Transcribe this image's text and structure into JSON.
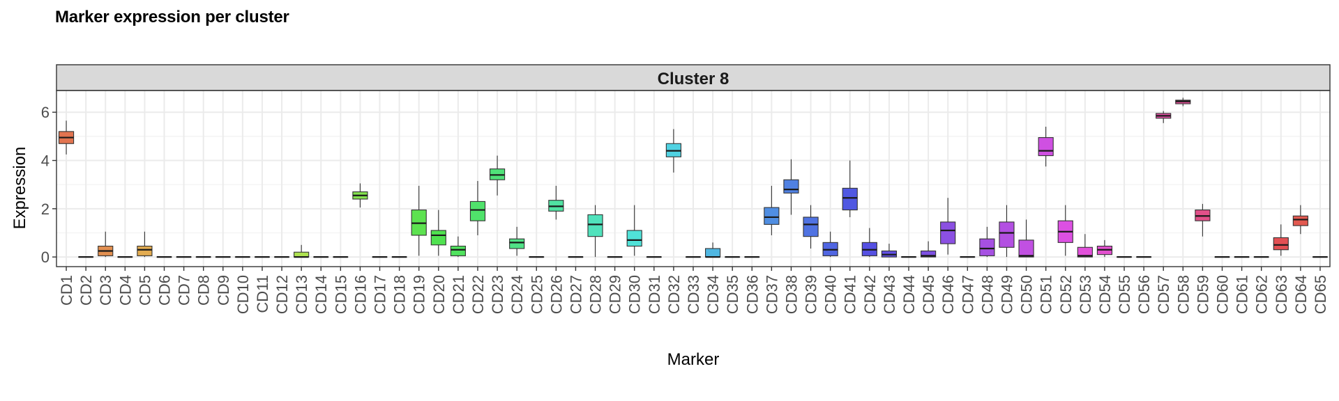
{
  "chart_data": {
    "type": "boxplot",
    "title": "Marker expression per cluster",
    "facet": "Cluster 8",
    "xlabel": "Marker",
    "ylabel": "Expression",
    "ylim": [
      -0.4,
      6.9
    ],
    "yticks": [
      0,
      2,
      4,
      6
    ],
    "grid": true,
    "legend": "none",
    "categories": [
      "CD1",
      "CD2",
      "CD3",
      "CD4",
      "CD5",
      "CD6",
      "CD7",
      "CD8",
      "CD9",
      "CD10",
      "CD11",
      "CD12",
      "CD13",
      "CD14",
      "CD15",
      "CD16",
      "CD17",
      "CD18",
      "CD19",
      "CD20",
      "CD21",
      "CD22",
      "CD23",
      "CD24",
      "CD25",
      "CD26",
      "CD27",
      "CD28",
      "CD29",
      "CD30",
      "CD31",
      "CD32",
      "CD33",
      "CD34",
      "CD35",
      "CD36",
      "CD37",
      "CD38",
      "CD39",
      "CD40",
      "CD41",
      "CD42",
      "CD43",
      "CD44",
      "CD45",
      "CD46",
      "CD47",
      "CD48",
      "CD49",
      "CD50",
      "CD51",
      "CD52",
      "CD53",
      "CD54",
      "CD55",
      "CD56",
      "CD57",
      "CD58",
      "CD59",
      "CD60",
      "CD61",
      "CD62",
      "CD63",
      "CD64",
      "CD65"
    ],
    "boxes": [
      {
        "min": 4.25,
        "q1": 4.7,
        "median": 4.95,
        "q3": 5.2,
        "max": 5.65
      },
      {
        "min": 0,
        "q1": 0,
        "median": 0,
        "q3": 0,
        "max": 0
      },
      {
        "min": 0,
        "q1": 0.05,
        "median": 0.25,
        "q3": 0.45,
        "max": 1.05
      },
      {
        "min": 0,
        "q1": 0,
        "median": 0,
        "q3": 0,
        "max": 0
      },
      {
        "min": 0,
        "q1": 0.05,
        "median": 0.3,
        "q3": 0.45,
        "max": 1.05
      },
      {
        "min": 0,
        "q1": 0,
        "median": 0,
        "q3": 0,
        "max": 0
      },
      {
        "min": 0,
        "q1": 0,
        "median": 0,
        "q3": 0,
        "max": 0
      },
      {
        "min": 0,
        "q1": 0,
        "median": 0,
        "q3": 0,
        "max": 0
      },
      {
        "min": 0,
        "q1": 0,
        "median": 0,
        "q3": 0,
        "max": 0
      },
      {
        "min": 0,
        "q1": 0,
        "median": 0,
        "q3": 0,
        "max": 0
      },
      {
        "min": 0,
        "q1": 0,
        "median": 0,
        "q3": 0,
        "max": 0
      },
      {
        "min": 0,
        "q1": 0,
        "median": 0,
        "q3": 0,
        "max": 0
      },
      {
        "min": 0,
        "q1": 0,
        "median": 0,
        "q3": 0.2,
        "max": 0.5
      },
      {
        "min": 0,
        "q1": 0,
        "median": 0,
        "q3": 0,
        "max": 0
      },
      {
        "min": 0,
        "q1": 0,
        "median": 0,
        "q3": 0,
        "max": 0
      },
      {
        "min": 2.05,
        "q1": 2.4,
        "median": 2.55,
        "q3": 2.7,
        "max": 3.05
      },
      {
        "min": 0,
        "q1": 0,
        "median": 0,
        "q3": 0,
        "max": 0
      },
      {
        "min": 0,
        "q1": 0,
        "median": 0,
        "q3": 0,
        "max": 0
      },
      {
        "min": 0.05,
        "q1": 0.9,
        "median": 1.4,
        "q3": 1.95,
        "max": 2.95
      },
      {
        "min": 0.05,
        "q1": 0.5,
        "median": 0.9,
        "q3": 1.1,
        "max": 1.95
      },
      {
        "min": 0,
        "q1": 0.05,
        "median": 0.3,
        "q3": 0.45,
        "max": 0.85
      },
      {
        "min": 0.9,
        "q1": 1.5,
        "median": 1.95,
        "q3": 2.3,
        "max": 3.15
      },
      {
        "min": 2.55,
        "q1": 3.2,
        "median": 3.4,
        "q3": 3.65,
        "max": 4.2
      },
      {
        "min": 0.05,
        "q1": 0.35,
        "median": 0.6,
        "q3": 0.75,
        "max": 1.25
      },
      {
        "min": 0,
        "q1": 0,
        "median": 0,
        "q3": 0,
        "max": 0
      },
      {
        "min": 1.55,
        "q1": 1.9,
        "median": 2.1,
        "q3": 2.35,
        "max": 2.95
      },
      {
        "min": 0,
        "q1": 0,
        "median": 0,
        "q3": 0,
        "max": 0
      },
      {
        "min": 0,
        "q1": 0.85,
        "median": 1.35,
        "q3": 1.75,
        "max": 2.15
      },
      {
        "min": 0,
        "q1": 0,
        "median": 0,
        "q3": 0,
        "max": 0
      },
      {
        "min": 0.05,
        "q1": 0.45,
        "median": 0.7,
        "q3": 1.1,
        "max": 2.15
      },
      {
        "min": 0,
        "q1": 0,
        "median": 0,
        "q3": 0,
        "max": 0
      },
      {
        "min": 3.5,
        "q1": 4.15,
        "median": 4.4,
        "q3": 4.7,
        "max": 5.3
      },
      {
        "min": 0,
        "q1": 0,
        "median": 0,
        "q3": 0,
        "max": 0
      },
      {
        "min": 0,
        "q1": 0,
        "median": 0,
        "q3": 0.35,
        "max": 0.6
      },
      {
        "min": 0,
        "q1": 0,
        "median": 0,
        "q3": 0,
        "max": 0
      },
      {
        "min": 0,
        "q1": 0,
        "median": 0,
        "q3": 0,
        "max": 0
      },
      {
        "min": 0.9,
        "q1": 1.35,
        "median": 1.65,
        "q3": 2.05,
        "max": 2.95
      },
      {
        "min": 1.75,
        "q1": 2.65,
        "median": 2.8,
        "q3": 3.2,
        "max": 4.05
      },
      {
        "min": 0.35,
        "q1": 0.85,
        "median": 1.35,
        "q3": 1.65,
        "max": 2.15
      },
      {
        "min": 0,
        "q1": 0.05,
        "median": 0.3,
        "q3": 0.6,
        "max": 1.05
      },
      {
        "min": 1.65,
        "q1": 1.95,
        "median": 2.45,
        "q3": 2.85,
        "max": 4.0
      },
      {
        "min": 0,
        "q1": 0.05,
        "median": 0.3,
        "q3": 0.6,
        "max": 1.2
      },
      {
        "min": 0,
        "q1": 0,
        "median": 0.1,
        "q3": 0.25,
        "max": 0.55
      },
      {
        "min": 0,
        "q1": 0,
        "median": 0,
        "q3": 0,
        "max": 0
      },
      {
        "min": 0,
        "q1": 0,
        "median": 0.05,
        "q3": 0.25,
        "max": 0.65
      },
      {
        "min": 0.1,
        "q1": 0.55,
        "median": 1.1,
        "q3": 1.45,
        "max": 2.45
      },
      {
        "min": 0,
        "q1": 0,
        "median": 0,
        "q3": 0,
        "max": 0
      },
      {
        "min": 0,
        "q1": 0.05,
        "median": 0.35,
        "q3": 0.75,
        "max": 1.25
      },
      {
        "min": 0,
        "q1": 0.4,
        "median": 1.0,
        "q3": 1.45,
        "max": 2.15
      },
      {
        "min": 0,
        "q1": 0,
        "median": 0.05,
        "q3": 0.7,
        "max": 1.55
      },
      {
        "min": 3.75,
        "q1": 4.2,
        "median": 4.4,
        "q3": 4.95,
        "max": 5.4
      },
      {
        "min": 0.05,
        "q1": 0.6,
        "median": 1.05,
        "q3": 1.5,
        "max": 2.15
      },
      {
        "min": 0,
        "q1": 0,
        "median": 0.05,
        "q3": 0.4,
        "max": 0.95
      },
      {
        "min": 0,
        "q1": 0.1,
        "median": 0.3,
        "q3": 0.45,
        "max": 0.7
      },
      {
        "min": 0,
        "q1": 0,
        "median": 0,
        "q3": 0,
        "max": 0
      },
      {
        "min": 0,
        "q1": 0,
        "median": 0,
        "q3": 0,
        "max": 0
      },
      {
        "min": 5.55,
        "q1": 5.75,
        "median": 5.85,
        "q3": 5.95,
        "max": 6.05
      },
      {
        "min": 6.25,
        "q1": 6.35,
        "median": 6.45,
        "q3": 6.5,
        "max": 6.6
      },
      {
        "min": 0.85,
        "q1": 1.5,
        "median": 1.7,
        "q3": 1.95,
        "max": 2.2
      },
      {
        "min": 0,
        "q1": 0,
        "median": 0,
        "q3": 0,
        "max": 0
      },
      {
        "min": 0,
        "q1": 0,
        "median": 0,
        "q3": 0,
        "max": 0
      },
      {
        "min": 0,
        "q1": 0,
        "median": 0,
        "q3": 0,
        "max": 0
      },
      {
        "min": 0.05,
        "q1": 0.3,
        "median": 0.5,
        "q3": 0.8,
        "max": 1.35
      },
      {
        "min": 0.95,
        "q1": 1.3,
        "median": 1.55,
        "q3": 1.7,
        "max": 2.15
      },
      {
        "min": 0,
        "q1": 0,
        "median": 0,
        "q3": 0,
        "max": 0
      }
    ]
  }
}
